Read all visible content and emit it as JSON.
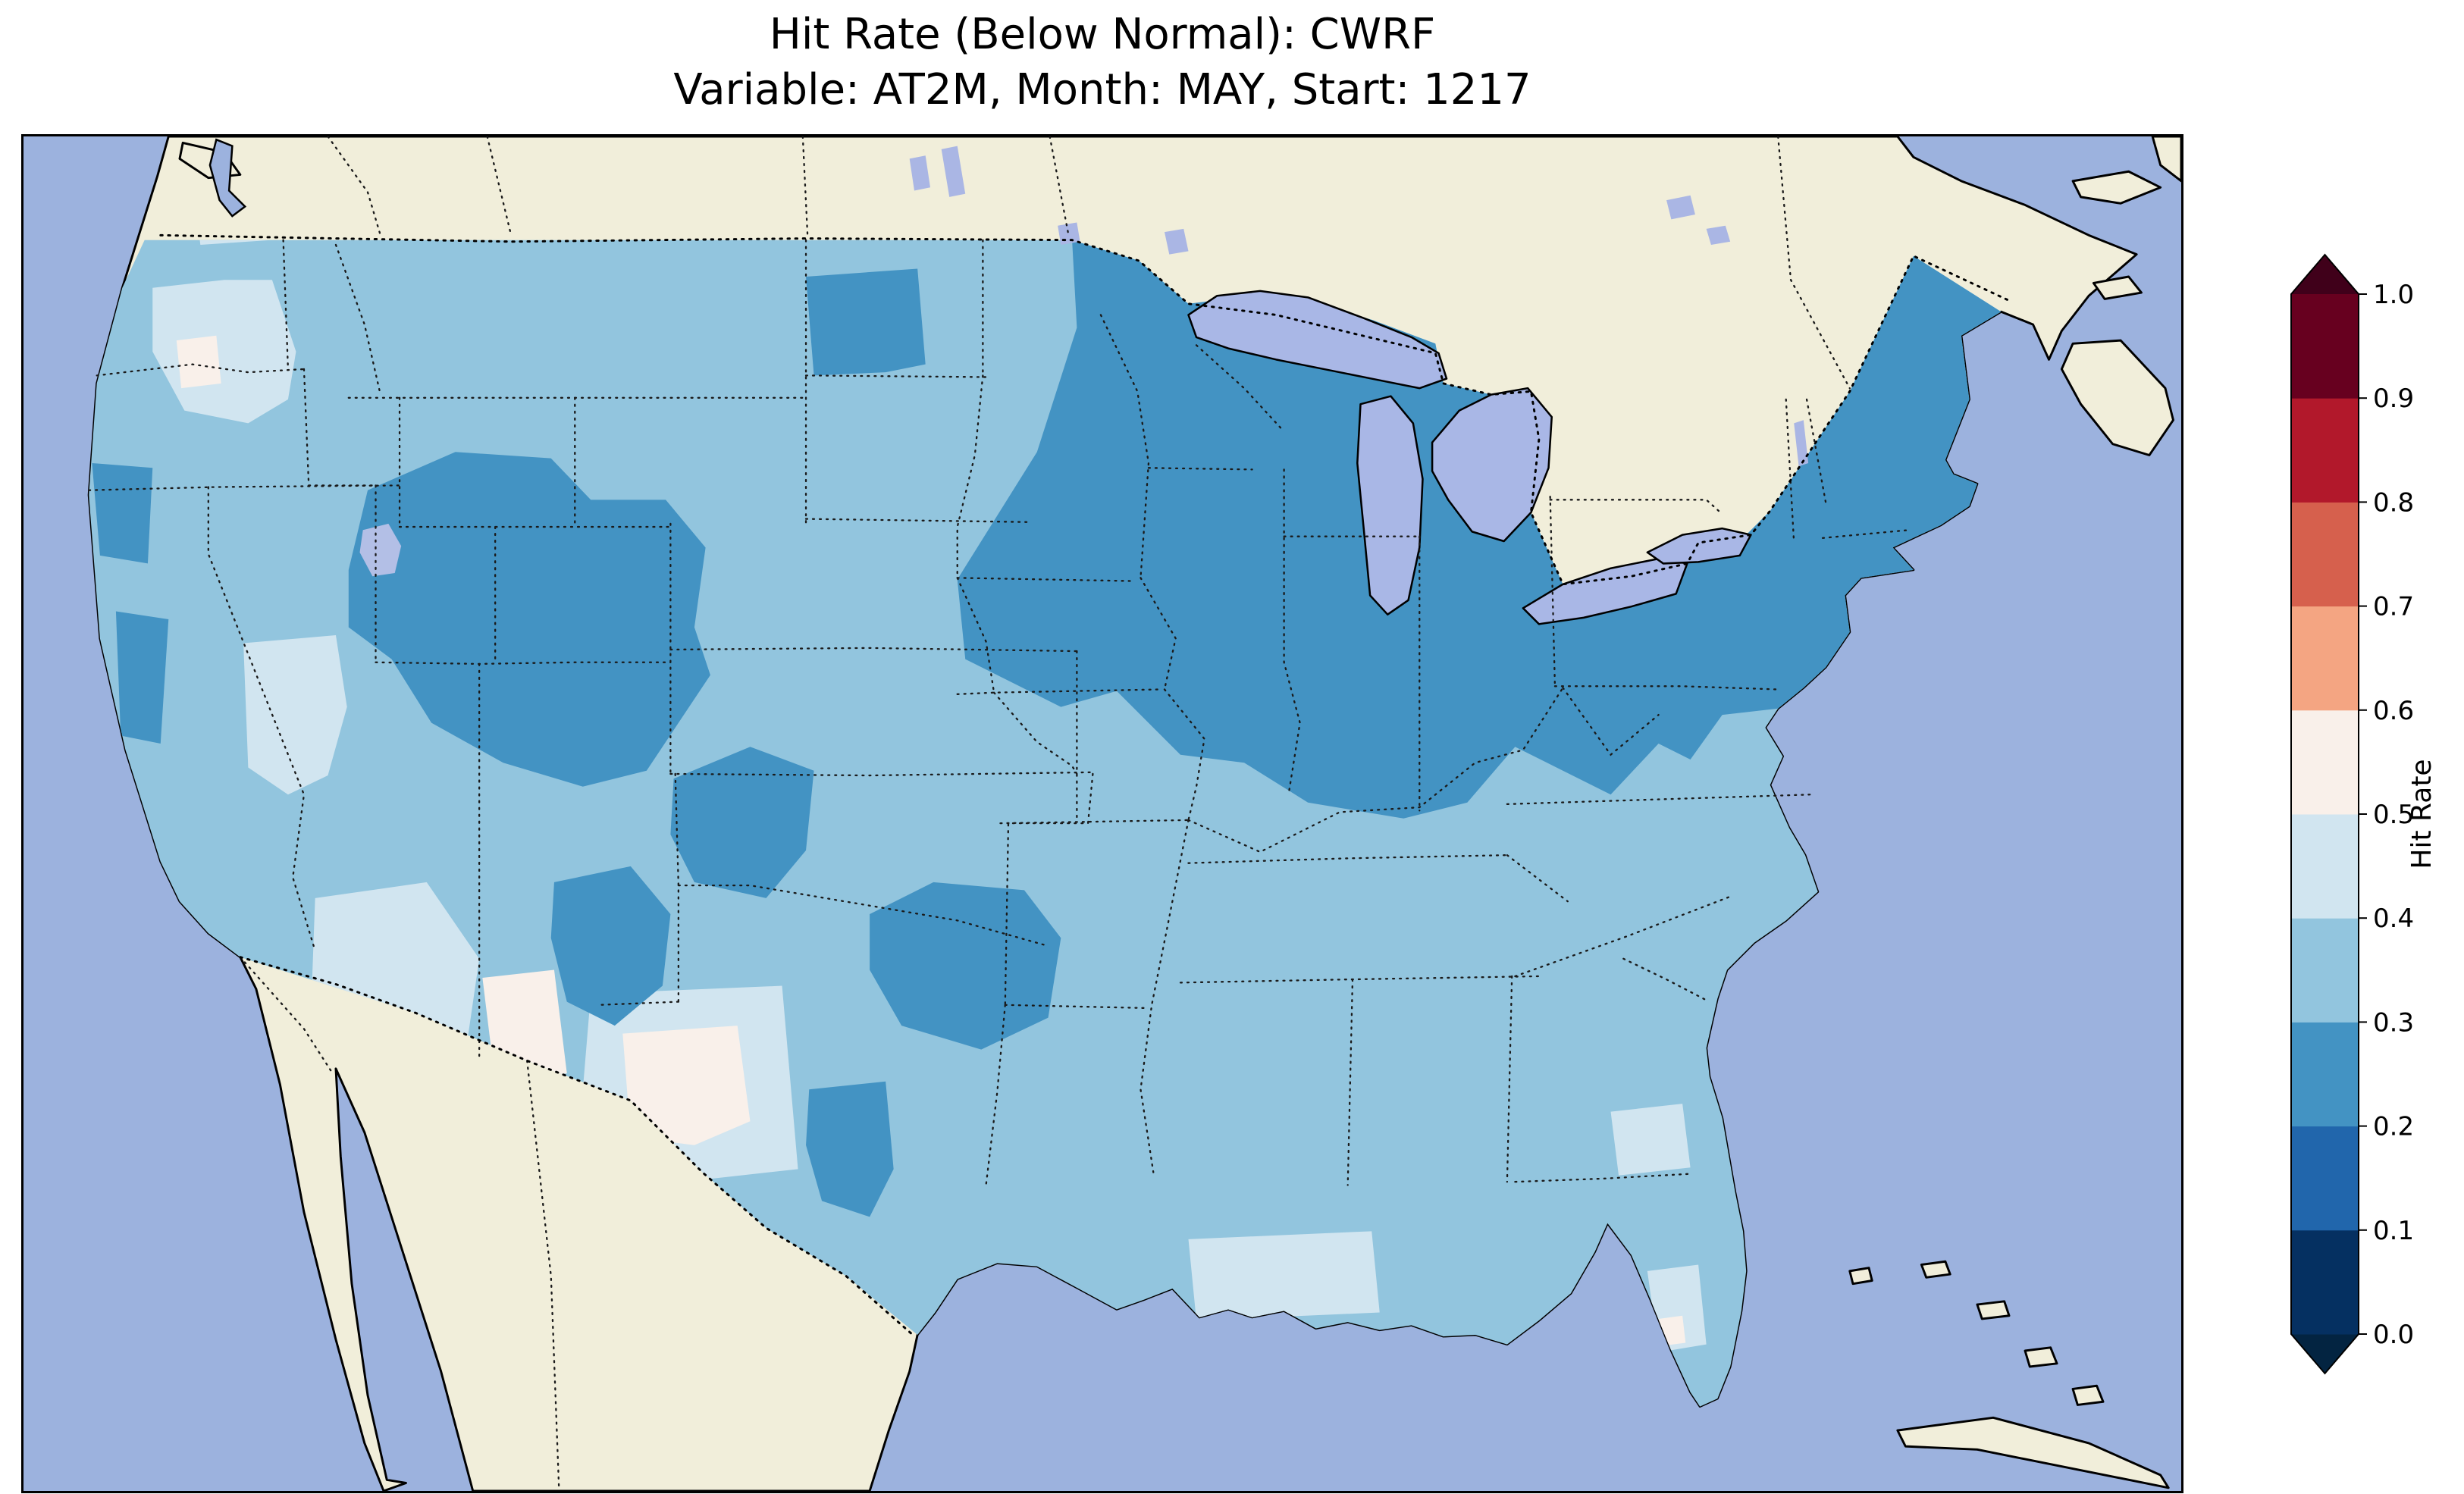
{
  "figure": {
    "title_line1": "Hit Rate (Below Normal): CWRF",
    "title_line2": "Variable: AT2M, Month: MAY, Start: 1217"
  },
  "colorbar": {
    "label": "Hit Rate",
    "ticks": [
      "1.0",
      "0.9",
      "0.8",
      "0.7",
      "0.6",
      "0.5",
      "0.4",
      "0.3",
      "0.2",
      "0.1",
      "0.0"
    ],
    "colors": [
      "#053061",
      "#2166ac",
      "#4393c3",
      "#92c5de",
      "#d1e5f0",
      "#f9f0ea",
      "#f4a582",
      "#d6604d",
      "#b2182b",
      "#67001f"
    ],
    "under_color": "#032441",
    "over_color": "#40001a"
  },
  "map": {
    "ocean_color": "#9cb2de",
    "land_color": "#f1eeda",
    "lake_color": "#a9b7e6",
    "small_lake_color": "#aab6e4",
    "salt_lake_color": "#b3bfe6",
    "coastline_color": "#000000"
  },
  "chart_data": {
    "type": "heatmap",
    "title": "Hit Rate (Below Normal): CWRF",
    "subtitle": "Variable: AT2M, Month: MAY, Start: 1217",
    "model": "CWRF",
    "metric": "Hit Rate",
    "category": "Below Normal",
    "variable": "AT2M",
    "month": "MAY",
    "start": "1217",
    "colorbar_label": "Hit Rate",
    "levels": [
      0.0,
      0.1,
      0.2,
      0.3,
      0.4,
      0.5,
      0.6,
      0.7,
      0.8,
      0.9,
      1.0
    ],
    "level_colors": [
      "#053061",
      "#2166ac",
      "#4393c3",
      "#92c5de",
      "#d1e5f0",
      "#f9f0ea",
      "#f4a582",
      "#d6604d",
      "#b2182b",
      "#67001f"
    ],
    "colormap": "RdBu_r, 10 discrete bins with under/over extension triangles",
    "domain": "Contiguous United States (gridded cells over CONUS; Canada and Mexico unshaded)",
    "legend_position": "right",
    "regions": [
      {
        "region": "Upper Midwest, Great Lakes, Corn Belt, Ohio Valley, Mid-Atlantic, Northeast",
        "hit_rate": 0.25
      },
      {
        "region": "Wyoming, Colorado, northeast Utah",
        "hit_rate": 0.25
      },
      {
        "region": "Eastern Montana / western North Dakota patch",
        "hit_rate": 0.25
      },
      {
        "region": "Oklahoma / Ozarks patch",
        "hit_rate": 0.25
      },
      {
        "region": "Texas panhandle / northeast New Mexico patch",
        "hit_rate": 0.25
      },
      {
        "region": "Central New Mexico patch",
        "hit_rate": 0.25
      },
      {
        "region": "Central Texas patch",
        "hit_rate": 0.25
      },
      {
        "region": "Northern and central California coast patches",
        "hit_rate": 0.25
      },
      {
        "region": "Most of the West, Plains, Mid-South, Southeast, Florida, Texas",
        "hit_rate": 0.35
      },
      {
        "region": "Central Oregon, Puget lowlands, central Nevada, Arizona, Gulf Coast and south Florida patches",
        "hit_rate": 0.45
      },
      {
        "region": "Small patches at Arizona/New Mexico border, west Texas, central Oregon, south Florida",
        "hit_rate": 0.55
      }
    ],
    "notes": "All CONUS values fall between about 0.2 and 0.6; no cells reach the red (>0.6) part of the scale."
  }
}
